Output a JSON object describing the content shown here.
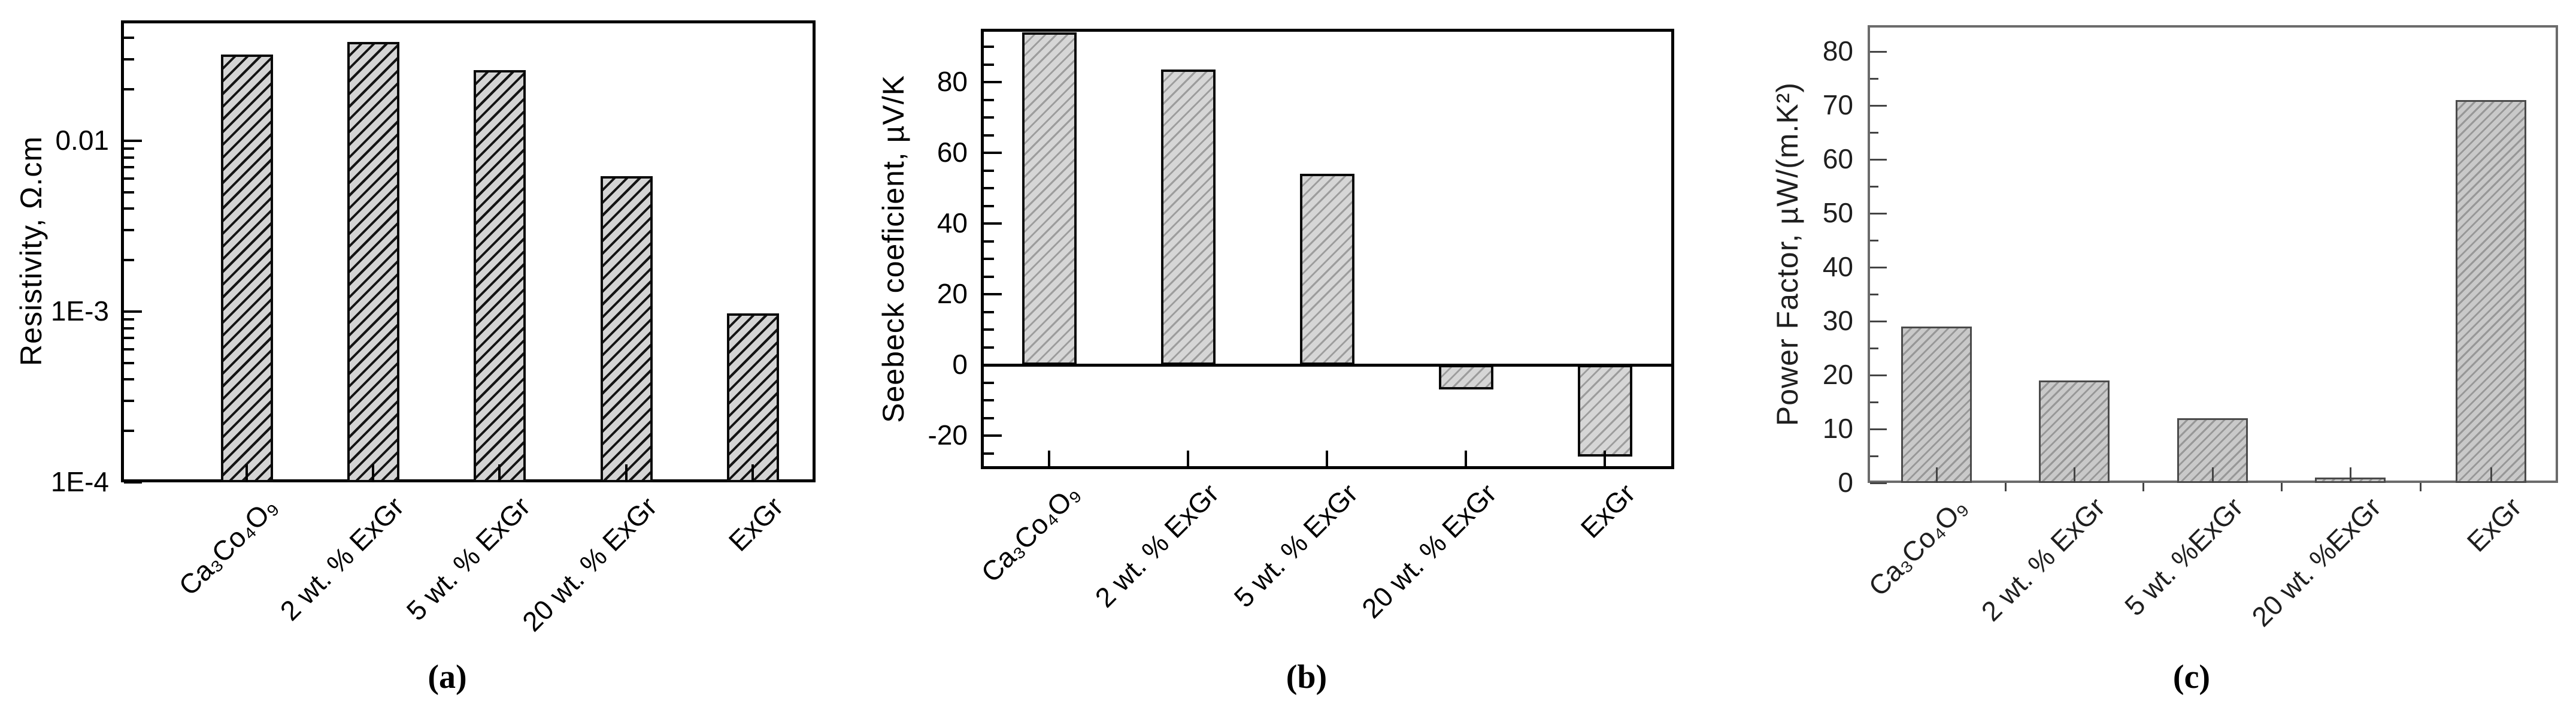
{
  "figure": {
    "description": "Three bar charts comparing Ca3Co4O9 / expanded-graphite composites",
    "background": "#ffffff",
    "captions": [
      "(a)",
      "(b)",
      "(c)"
    ]
  },
  "chart_data": [
    {
      "type": "bar",
      "panel_caption": "(a)",
      "title": "",
      "xlabel": "",
      "ylabel": "Resistivity, Ω.cm",
      "scale": "log",
      "ylim": [
        0.0001,
        0.05
      ],
      "categories": [
        "Ca₃Co₄O₉",
        "2 wt. % ExGr",
        "5 wt. % ExGr",
        "20 wt. % ExGr",
        "ExGr"
      ],
      "values": [
        0.032,
        0.038,
        0.026,
        0.0062,
        0.00098
      ],
      "yticks": [
        {
          "v": 0.01,
          "label": "0.01"
        },
        {
          "v": 0.001,
          "label": "1E-3"
        },
        {
          "v": 0.0001,
          "label": "1E-4"
        }
      ],
      "minor": "log",
      "grid": false,
      "legend": null,
      "style": {
        "bar_fill": "#d4d4d4",
        "hatch_color": "#141414",
        "hatch_period": 15,
        "hatch_line": 4,
        "bar_border": "#0a0a0a",
        "bar_border_w": 4,
        "frame_color": "#000000",
        "tick_color": "#000000",
        "text_color": "#000000"
      }
    },
    {
      "type": "bar",
      "panel_caption": "(b)",
      "title": "",
      "xlabel": "",
      "ylabel": "Seebeck coeficient, µV/K",
      "scale": "linear",
      "ylim": [
        -29.5,
        95
      ],
      "categories": [
        "Ca₃Co₄O₉",
        "2 wt. % ExGr",
        "5 wt. % ExGr",
        "20 wt. % ExGr",
        "ExGr"
      ],
      "values": [
        94,
        83.5,
        54,
        -7,
        -26
      ],
      "yticks": [
        {
          "v": 80,
          "label": "80"
        },
        {
          "v": 60,
          "label": "60"
        },
        {
          "v": 40,
          "label": "40"
        },
        {
          "v": 20,
          "label": "20"
        },
        {
          "v": 0,
          "label": "0"
        },
        {
          "v": -20,
          "label": "-20"
        }
      ],
      "major_step": 20,
      "minor_step": 5,
      "zero_line": true,
      "grid": false,
      "legend": null,
      "style": {
        "bar_fill": "#d6d6d6",
        "hatch_color": "#9c9c9c",
        "hatch_period": 13,
        "hatch_line": 3,
        "bar_border": "#0a0a0a",
        "bar_border_w": 4,
        "frame_color": "#000000",
        "tick_color": "#000000",
        "text_color": "#000000"
      }
    },
    {
      "type": "bar",
      "panel_caption": "(c)",
      "title": "",
      "xlabel": "",
      "ylabel": "Power Factor, µW/(m.K²)",
      "scale": "linear",
      "ylim": [
        0,
        85
      ],
      "categories": [
        "Ca₃Co₄O₉",
        "2 wt. % ExGr",
        "5 wt. %ExGr",
        "20 wt. %ExGr",
        "ExGr"
      ],
      "values": [
        29,
        19,
        12,
        1,
        71
      ],
      "yticks": [
        {
          "v": 80,
          "label": "80"
        },
        {
          "v": 70,
          "label": "70"
        },
        {
          "v": 60,
          "label": "60"
        },
        {
          "v": 50,
          "label": "50"
        },
        {
          "v": 40,
          "label": "40"
        },
        {
          "v": 30,
          "label": "30"
        },
        {
          "v": 20,
          "label": "20"
        },
        {
          "v": 10,
          "label": "10"
        },
        {
          "v": 0,
          "label": "0"
        }
      ],
      "major_step": 10,
      "minor_step": 5,
      "zero_line": false,
      "grid": false,
      "legend": null,
      "style": {
        "bar_fill": "#c9c9c9",
        "hatch_color": "#979797",
        "hatch_period": 11,
        "hatch_line": 3,
        "bar_border": "#4a4a4a",
        "bar_border_w": 3,
        "frame_color": "#6b6b6b",
        "tick_color": "#444444",
        "text_color": "#1f1f1f"
      }
    }
  ]
}
